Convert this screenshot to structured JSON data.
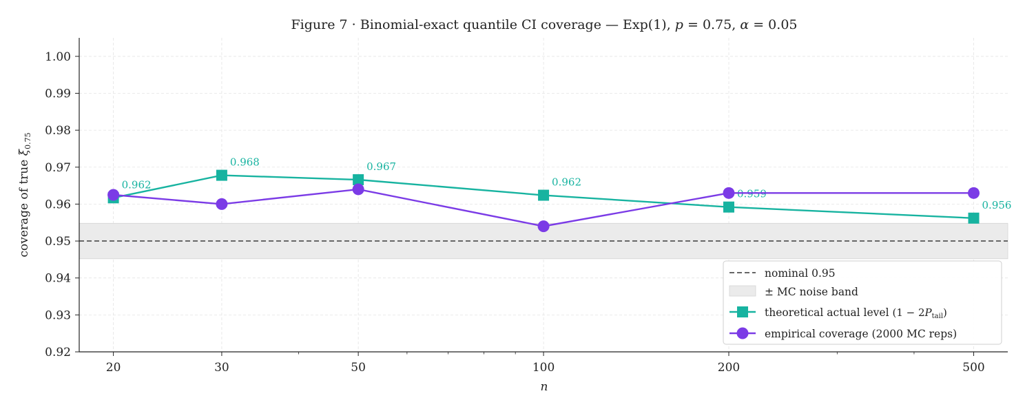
{
  "chart_data": {
    "type": "line",
    "title": "Figure 7 · Binomial-exact quantile CI coverage — Exp(1), p = 0.75, α = 0.05",
    "xlabel": "n",
    "ylabel": "coverage of true ξ0.75",
    "x_scale": "log",
    "x": [
      20,
      30,
      50,
      100,
      200,
      500
    ],
    "x_tick_labels": [
      "20",
      "30",
      "50",
      "100",
      "200",
      "500"
    ],
    "ylim": [
      0.92,
      1.005
    ],
    "y_ticks": [
      0.92,
      0.93,
      0.94,
      0.95,
      0.96,
      0.97,
      0.98,
      0.99,
      1.0
    ],
    "y_tick_labels": [
      "0.92",
      "0.93",
      "0.94",
      "0.95",
      "0.96",
      "0.97",
      "0.98",
      "0.99",
      "1.00"
    ],
    "grid": true,
    "reference_line": {
      "name": "nominal 0.95",
      "y": 0.95,
      "color": "#666666"
    },
    "band": {
      "name": "± MC noise band",
      "y_low": 0.9452,
      "y_high": 0.9548,
      "color": "#ebebeb"
    },
    "series": [
      {
        "name": "theoretical actual level (1 − 2P_tail)",
        "marker": "square",
        "color": "#17b3a0",
        "values": [
          0.9617,
          0.9678,
          0.9666,
          0.9624,
          0.9592,
          0.9562
        ],
        "data_labels": [
          "0.962",
          "0.968",
          "0.967",
          "0.962",
          "0.959",
          "0.956"
        ]
      },
      {
        "name": "empirical coverage (2000 MC reps)",
        "marker": "circle",
        "color": "#7b3be6",
        "values": [
          0.9625,
          0.96,
          0.964,
          0.954,
          0.963,
          0.963
        ]
      }
    ],
    "legend_position": "lower-right",
    "legend": [
      "nominal 0.95",
      "± MC noise band",
      "theoretical actual level",
      "empirical coverage (2000 MC reps)"
    ]
  }
}
